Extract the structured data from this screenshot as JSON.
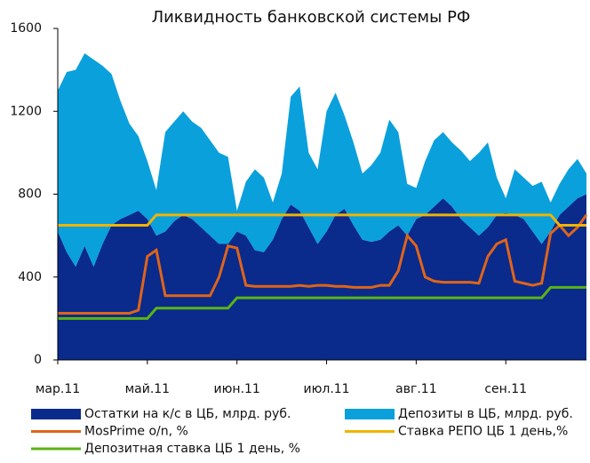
{
  "chart_data": {
    "type": "area",
    "title": "Ликвидность банковской системы РФ",
    "x": [
      0,
      1,
      2,
      3,
      4,
      5,
      6,
      7,
      8,
      9,
      10,
      11,
      12,
      13,
      14,
      15,
      16,
      17,
      18,
      19,
      20,
      21,
      22,
      23,
      24,
      25,
      26,
      27,
      28,
      29,
      30,
      31,
      32,
      33,
      34,
      35,
      36,
      37,
      38,
      39,
      40,
      41,
      42,
      43,
      44,
      45,
      46,
      47,
      48,
      49,
      50,
      51,
      52,
      53,
      54,
      55,
      56,
      57,
      58,
      59
    ],
    "xlim": [
      0,
      59
    ],
    "xticks": [
      {
        "value": 0,
        "label": "мар.11"
      },
      {
        "value": 10,
        "label": "май.11"
      },
      {
        "value": 20,
        "label": "июн.11"
      },
      {
        "value": 30,
        "label": "июл.11"
      },
      {
        "value": 40,
        "label": "авг.11"
      },
      {
        "value": 50,
        "label": "сен.11"
      }
    ],
    "ylim": [
      0,
      1600
    ],
    "yticks": [
      0,
      400,
      800,
      1200,
      1600
    ],
    "grid": false,
    "legend": "bottom",
    "series": [
      {
        "name": "Остатки на к/с в ЦБ, млрд. руб.",
        "color": "#0a2a8c",
        "type": "area",
        "stacked": true,
        "values": [
          620,
          520,
          450,
          550,
          450,
          560,
          650,
          680,
          700,
          720,
          680,
          600,
          620,
          670,
          700,
          680,
          640,
          600,
          560,
          560,
          620,
          600,
          530,
          520,
          580,
          680,
          750,
          720,
          640,
          560,
          620,
          700,
          730,
          650,
          580,
          570,
          580,
          620,
          650,
          600,
          680,
          700,
          740,
          780,
          740,
          680,
          640,
          600,
          640,
          700,
          710,
          700,
          680,
          620,
          560,
          620,
          700,
          740,
          780,
          800
        ]
      },
      {
        "name": "Депозиты в ЦБ, млрд. руб.",
        "color": "#0aa0dc",
        "type": "area",
        "stacked": true,
        "values": [
          680,
          870,
          950,
          930,
          1000,
          860,
          730,
          570,
          440,
          360,
          280,
          220,
          480,
          480,
          500,
          470,
          480,
          460,
          440,
          420,
          100,
          260,
          390,
          360,
          180,
          220,
          520,
          600,
          360,
          360,
          580,
          590,
          450,
          400,
          320,
          370,
          420,
          540,
          450,
          250,
          150,
          260,
          320,
          320,
          310,
          330,
          320,
          400,
          410,
          180,
          70,
          220,
          200,
          220,
          300,
          140,
          150,
          180,
          190,
          100
        ]
      },
      {
        "name": "MosPrime o/n, %",
        "color": "#e06418",
        "type": "line",
        "values": [
          225,
          225,
          225,
          225,
          225,
          225,
          225,
          225,
          225,
          240,
          500,
          530,
          310,
          310,
          310,
          310,
          310,
          310,
          400,
          550,
          540,
          360,
          355,
          355,
          355,
          355,
          355,
          360,
          355,
          360,
          360,
          355,
          355,
          350,
          350,
          350,
          360,
          360,
          430,
          600,
          550,
          400,
          380,
          375,
          375,
          375,
          375,
          370,
          500,
          560,
          580,
          380,
          370,
          360,
          370,
          610,
          650,
          600,
          640,
          700
        ]
      },
      {
        "name": "Ставка РЕПО ЦБ 1 день,%",
        "color": "#f0b400",
        "type": "line",
        "values": [
          650,
          650,
          650,
          650,
          650,
          650,
          650,
          650,
          650,
          650,
          650,
          700,
          700,
          700,
          700,
          700,
          700,
          700,
          700,
          700,
          700,
          700,
          700,
          700,
          700,
          700,
          700,
          700,
          700,
          700,
          700,
          700,
          700,
          700,
          700,
          700,
          700,
          700,
          700,
          700,
          700,
          700,
          700,
          700,
          700,
          700,
          700,
          700,
          700,
          700,
          700,
          700,
          700,
          700,
          700,
          700,
          650,
          650,
          650,
          650
        ]
      },
      {
        "name": "Депозитная ставка ЦБ 1 день, %",
        "color": "#5ab414",
        "type": "line",
        "values": [
          200,
          200,
          200,
          200,
          200,
          200,
          200,
          200,
          200,
          200,
          200,
          250,
          250,
          250,
          250,
          250,
          250,
          250,
          250,
          250,
          300,
          300,
          300,
          300,
          300,
          300,
          300,
          300,
          300,
          300,
          300,
          300,
          300,
          300,
          300,
          300,
          300,
          300,
          300,
          300,
          300,
          300,
          300,
          300,
          300,
          300,
          300,
          300,
          300,
          300,
          300,
          300,
          300,
          300,
          300,
          350,
          350,
          350,
          350,
          350
        ]
      }
    ]
  }
}
